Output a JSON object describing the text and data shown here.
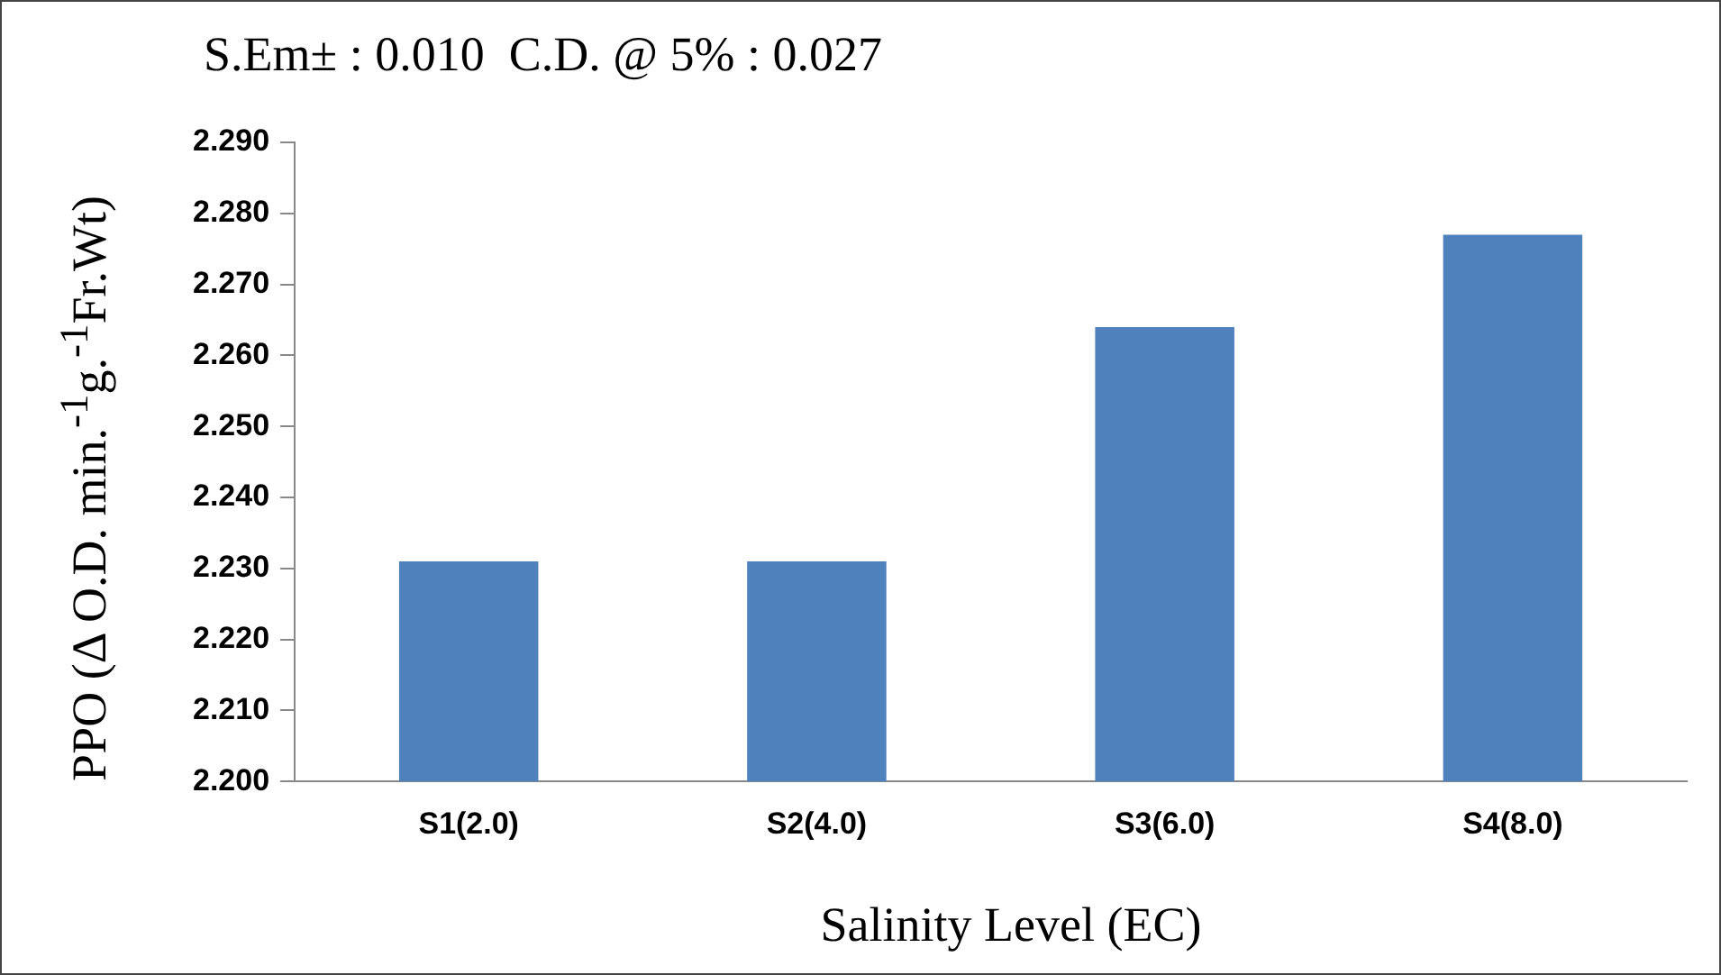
{
  "chart_data": {
    "type": "bar",
    "annotations": [
      "S.Em± : 0.010  C.D. @ 5% : 0.027"
    ],
    "xlabel": "Salinity Level (EC)",
    "ylabel": "PPO (Δ O.D. min.$^{-1}$g.$^{-1}$Fr.Wt)",
    "categories": [
      "S1(2.0)",
      "S2(4.0)",
      "S3(6.0)",
      "S4(8.0)"
    ],
    "values": [
      2.231,
      2.231,
      2.264,
      2.277
    ],
    "color": "#4f81bd",
    "ylim": [
      2.2,
      2.29
    ],
    "yticks": [
      {
        "value": 2.2,
        "label": "2.200"
      },
      {
        "value": 2.21,
        "label": "2.210"
      },
      {
        "value": 2.22,
        "label": "2.220"
      },
      {
        "value": 2.23,
        "label": "2.230"
      },
      {
        "value": 2.24,
        "label": "2.240"
      },
      {
        "value": 2.25,
        "label": "2.250"
      },
      {
        "value": 2.26,
        "label": "2.260"
      },
      {
        "value": 2.27,
        "label": "2.270"
      },
      {
        "value": 2.28,
        "label": "2.280"
      },
      {
        "value": 2.29,
        "label": "2.290"
      }
    ],
    "grid": false,
    "legend": false
  }
}
